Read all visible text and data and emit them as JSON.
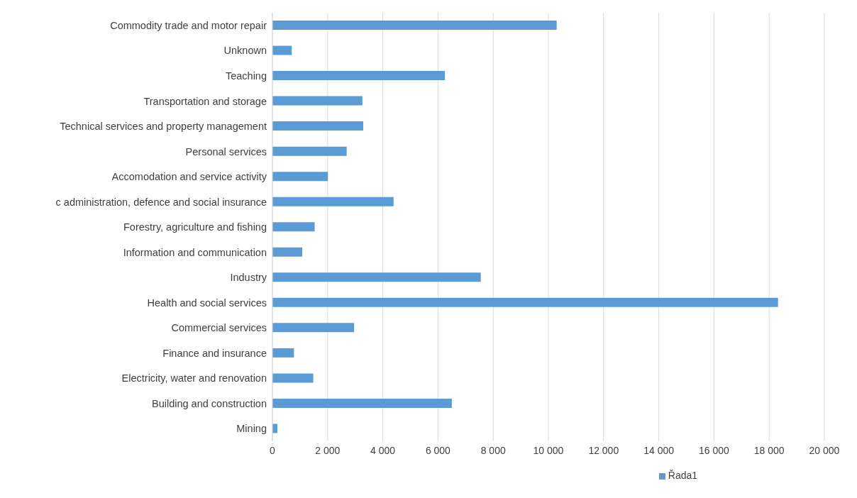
{
  "chart_data": {
    "type": "bar",
    "orientation": "horizontal",
    "categories": [
      "Commodity trade and motor repair",
      "Unknown",
      "Teaching",
      "Transportation and storage",
      "Technical services and property management",
      "Personal services",
      "Accomodation and service activity",
      "c administration, defence and social insurance",
      "Forestry, agriculture and fishing",
      "Information and communication",
      "Industry",
      "Health and social services",
      "Commercial services",
      "Finance and insurance",
      "Electricity, water and renovation",
      "Building and construction",
      "Mining"
    ],
    "series": [
      {
        "name": "Řada1",
        "color": "#5b9bd5",
        "values": [
          10300,
          700,
          6250,
          3260,
          3290,
          2690,
          2010,
          4390,
          1530,
          1080,
          7550,
          18320,
          2960,
          780,
          1480,
          6500,
          180
        ]
      }
    ],
    "xlim": [
      0,
      20000
    ],
    "xticks": [
      {
        "value": 0,
        "label": "0"
      },
      {
        "value": 2000,
        "label": "2 000"
      },
      {
        "value": 4000,
        "label": "4 000"
      },
      {
        "value": 6000,
        "label": "6 000"
      },
      {
        "value": 8000,
        "label": "8 000"
      },
      {
        "value": 10000,
        "label": "10 000"
      },
      {
        "value": 12000,
        "label": "12 000"
      },
      {
        "value": 14000,
        "label": "14 000"
      },
      {
        "value": 16000,
        "label": "16 000"
      },
      {
        "value": 18000,
        "label": "18 000"
      },
      {
        "value": 20000,
        "label": "20 000"
      }
    ],
    "grid": "x",
    "legend": "bottom"
  }
}
